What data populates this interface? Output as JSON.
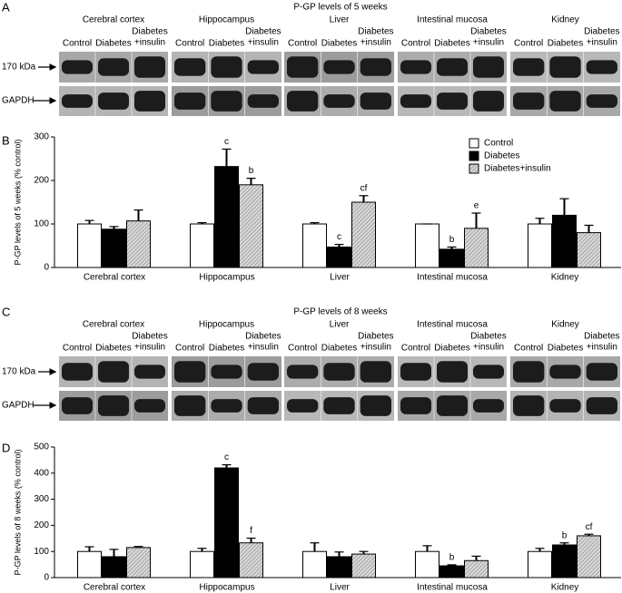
{
  "blot_panels": [
    {
      "label": "A",
      "title": "P-GP levels of 5 weeks",
      "tissues": [
        "Cerebral cortex",
        "Hippocampus",
        "Liver",
        "Intestinal mucosa",
        "Kidney"
      ],
      "columns": [
        [
          "Control"
        ],
        [
          "Diabetes"
        ],
        [
          "Diabetes",
          "+insulin"
        ]
      ],
      "rows": [
        "170 kDa",
        "GAPDH"
      ]
    },
    {
      "label": "C",
      "title": "P-GP levels of 8 weeks",
      "tissues": [
        "Cerebral cortex",
        "Hippocampus",
        "Liver",
        "Intestinal mucosa",
        "Kidney"
      ],
      "columns": [
        [
          "Control"
        ],
        [
          "Diabetes"
        ],
        [
          "Diabetes",
          "+insulin"
        ]
      ],
      "rows": [
        "170 kDa",
        "GAPDH"
      ]
    }
  ],
  "chart_data": [
    {
      "type": "bar",
      "panel_label": "B",
      "ylabel": "P-GP levels of 5 weeks (% control)",
      "categories": [
        "Cerebral cortex",
        "Hippocampus",
        "Liver",
        "Intestinal mucosa",
        "Kidney"
      ],
      "series": [
        {
          "name": "Control",
          "color": "#ffffff",
          "values": [
            100,
            100,
            100,
            100,
            100
          ],
          "errors": [
            8,
            3,
            3,
            0,
            13
          ],
          "annotations": [
            null,
            null,
            null,
            null,
            null
          ]
        },
        {
          "name": "Diabetes",
          "color": "#000000",
          "values": [
            88,
            232,
            47,
            42,
            120
          ],
          "errors": [
            6,
            40,
            6,
            5,
            38
          ],
          "annotations": [
            null,
            "c",
            "c",
            "b",
            null
          ]
        },
        {
          "name": "Diabetes+insulin",
          "color": "#c8c8c8",
          "hatch": true,
          "values": [
            107,
            190,
            150,
            90,
            80
          ],
          "errors": [
            25,
            15,
            15,
            35,
            17
          ],
          "annotations": [
            null,
            "b",
            "cf",
            "e",
            null
          ]
        }
      ],
      "ylim": [
        0,
        300
      ],
      "yticks": [
        0,
        100,
        200,
        300
      ],
      "legend": "upper right"
    },
    {
      "type": "bar",
      "panel_label": "D",
      "ylabel": "P-GP levels of 8 weeks (% control)",
      "categories": [
        "Cerebral cortex",
        "Hippocampus",
        "Liver",
        "Intestinal mucosa",
        "Kidney"
      ],
      "series": [
        {
          "color": "#ffffff",
          "values": [
            100,
            100,
            100,
            100,
            100
          ],
          "errors": [
            18,
            12,
            33,
            22,
            12
          ],
          "annotations": [
            null,
            null,
            null,
            null,
            null
          ]
        },
        {
          "color": "#000000",
          "values": [
            80,
            420,
            80,
            45,
            125
          ],
          "errors": [
            28,
            12,
            18,
            4,
            8
          ],
          "annotations": [
            null,
            "c",
            null,
            "b",
            "b"
          ]
        },
        {
          "color": "#c8c8c8",
          "hatch": true,
          "values": [
            115,
            133,
            90,
            65,
            160
          ],
          "errors": [
            4,
            18,
            10,
            17,
            6
          ],
          "annotations": [
            null,
            "f",
            null,
            null,
            "cf"
          ]
        }
      ],
      "ylim": [
        0,
        500
      ],
      "yticks": [
        0,
        100,
        200,
        300,
        400,
        500
      ]
    }
  ]
}
